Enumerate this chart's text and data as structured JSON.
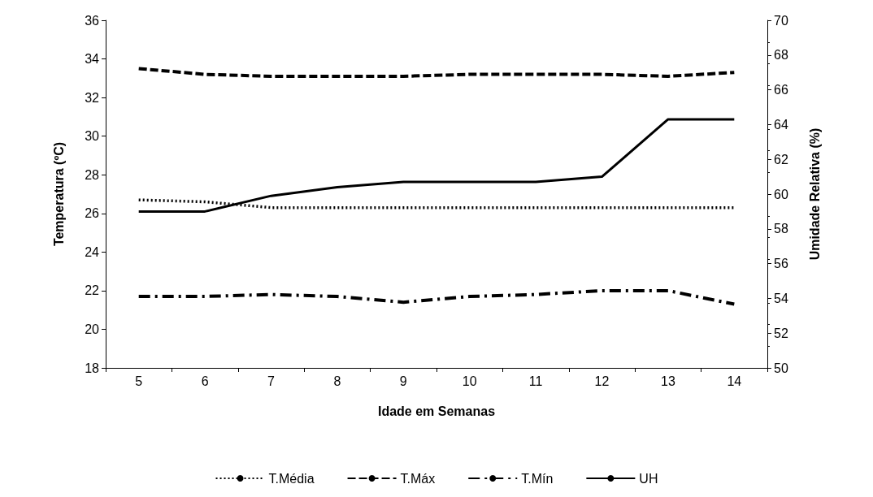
{
  "chart_data": {
    "type": "line",
    "xlabel": "Idade em Semanas",
    "ylabel": "Temperatura (ºC)",
    "y2label": "Umidade Relativa (%)",
    "categories": [
      "5",
      "6",
      "7",
      "8",
      "9",
      "10",
      "11",
      "12",
      "13",
      "14"
    ],
    "ylim": [
      18,
      36
    ],
    "yticks": [
      18,
      20,
      22,
      24,
      26,
      28,
      30,
      32,
      34,
      36
    ],
    "y2lim": [
      50,
      70
    ],
    "y2ticks": [
      50,
      52,
      54,
      56,
      58,
      60,
      62,
      64,
      66,
      68,
      70
    ],
    "grid": false,
    "legend": "bottom",
    "marker": "none",
    "series": [
      {
        "name": "T.Média",
        "color": "#000000",
        "line_style": "dotted",
        "values": [
          26.7,
          26.6,
          26.3,
          26.3,
          26.3,
          26.3,
          26.3,
          26.3,
          26.3,
          26.3
        ]
      },
      {
        "name": "T.Máx",
        "color": "#000000",
        "line_style": "dashed",
        "values": [
          33.5,
          33.2,
          33.1,
          33.1,
          33.1,
          33.2,
          33.2,
          33.2,
          33.1,
          33.3
        ]
      },
      {
        "name": "T.Mín",
        "color": "#000000",
        "line_style": "dashdot",
        "values": [
          21.7,
          21.7,
          21.8,
          21.7,
          21.4,
          21.7,
          21.8,
          22.0,
          22.0,
          21.3
        ]
      },
      {
        "name": "UH",
        "color": "#000000",
        "line_style": "solid",
        "axis": "y2",
        "values": [
          59.0,
          59.0,
          59.9,
          60.4,
          60.7,
          60.7,
          60.7,
          61.0,
          64.3,
          64.3
        ]
      }
    ]
  }
}
